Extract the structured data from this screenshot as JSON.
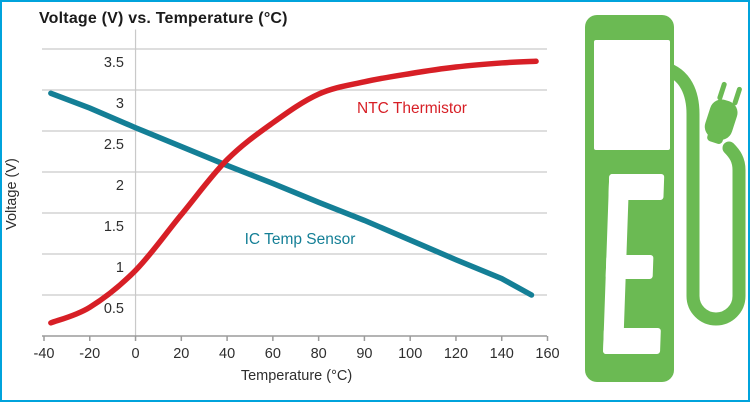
{
  "frame": {
    "border_color": "#00A3DC",
    "background": "#FFFFFF"
  },
  "header": {
    "title": "Voltage (V) vs. Temperature (°C)"
  },
  "chart_data": {
    "type": "line",
    "title": "Voltage (V) vs. Temperature (°C)",
    "xlabel": "Temperature (°C)",
    "ylabel": "Voltage (V)",
    "x_tick_labels": [
      "-40",
      "-20",
      "0",
      "20",
      "40",
      "60",
      "80",
      "90",
      "100",
      "120",
      "140",
      "160"
    ],
    "x_tick_values": [
      -40,
      -20,
      0,
      20,
      40,
      60,
      80,
      90,
      100,
      120,
      140,
      160
    ],
    "y_ticks": [
      0.5,
      1,
      1.5,
      2,
      2.5,
      3,
      3.5
    ],
    "ylim": [
      0,
      3.75
    ],
    "legend_position": "inline-curve-labels",
    "grid": {
      "horizontal": true,
      "vertical_line_at_temp": 0
    },
    "axis_color": "#9B9B9B",
    "grid_color": "#C9C9C9",
    "text_color": "#2E2E2E",
    "series": [
      {
        "name": "NTC Thermistor",
        "color": "#D71F26",
        "smooth": true,
        "x": [
          -37,
          -20,
          0,
          20,
          40,
          60,
          80,
          90,
          100,
          120,
          140,
          155
        ],
        "y": [
          0.16,
          0.35,
          0.8,
          1.48,
          2.15,
          2.6,
          2.95,
          3.1,
          3.2,
          3.28,
          3.33,
          3.35
        ]
      },
      {
        "name": "IC Temp Sensor",
        "color": "#147F96",
        "smooth": false,
        "x": [
          -37,
          -20,
          0,
          20,
          40,
          60,
          80,
          90,
          100,
          120,
          140,
          153
        ],
        "y": [
          2.96,
          2.78,
          2.54,
          2.31,
          2.08,
          1.86,
          1.63,
          1.41,
          1.17,
          0.93,
          0.7,
          0.5
        ]
      }
    ],
    "annotations": [
      {
        "text": "NTC Thermistor",
        "color": "#D71F26"
      },
      {
        "text": "IC Temp Sensor",
        "color": "#147F96"
      }
    ]
  },
  "icon": {
    "name": "ev-charging-station",
    "color": "#6BBA53",
    "letter": "E"
  }
}
